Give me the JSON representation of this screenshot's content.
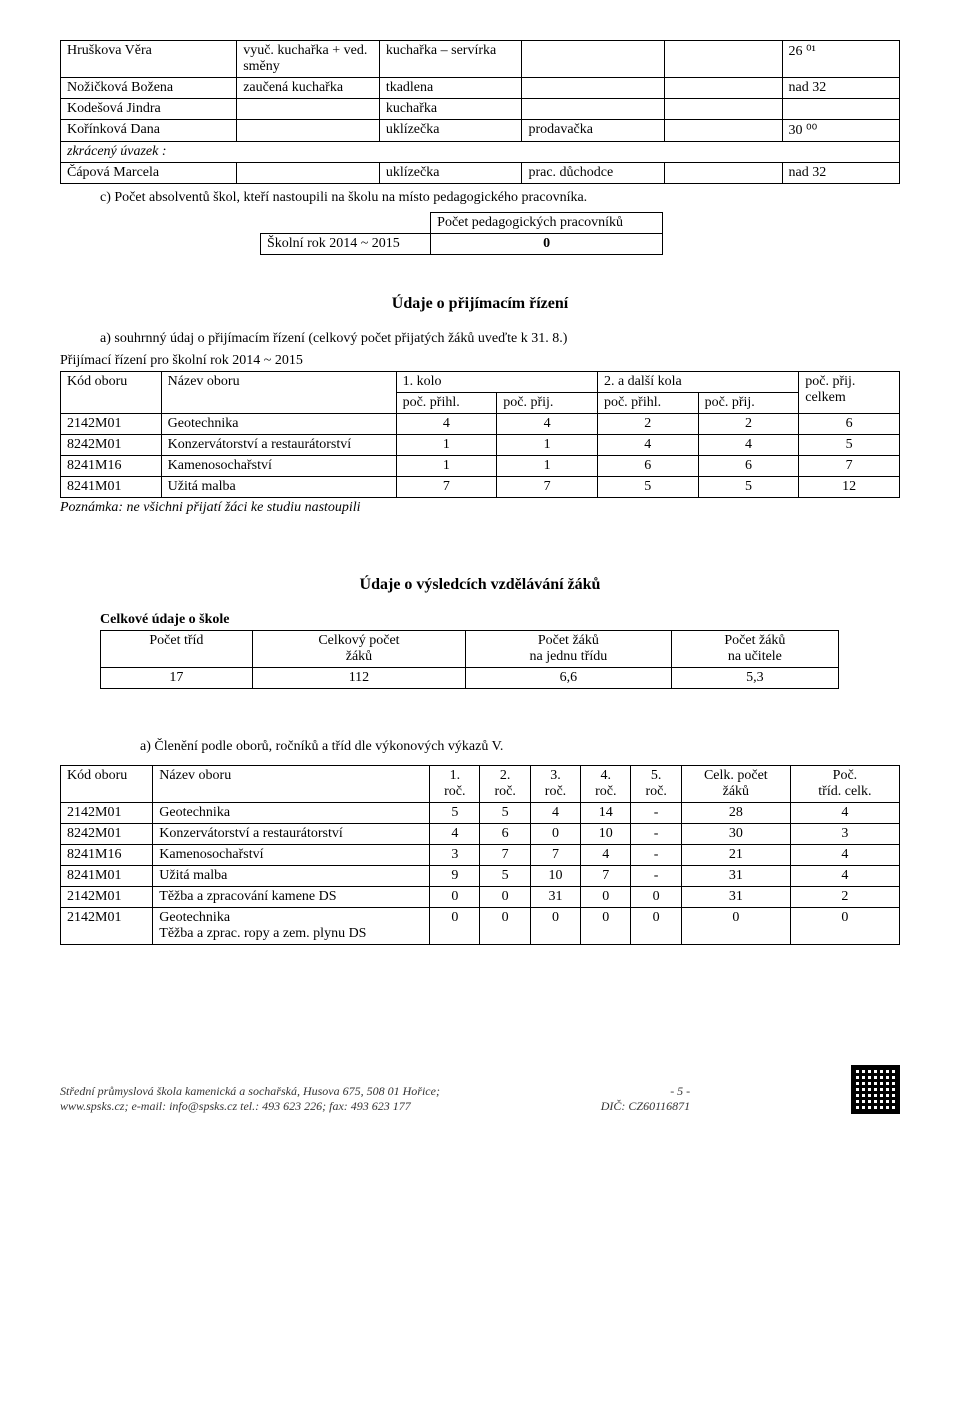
{
  "staff_table": {
    "rows": [
      {
        "name": "Hruškova Věra",
        "col2": "vyuč. kuchařka + ved. směny",
        "col3": "kuchařka – servírka",
        "col4": "",
        "col5": "",
        "col6": "26 ⁰¹"
      },
      {
        "name": "Nožičková Božena",
        "col2": "zaučená kuchařka",
        "col3": "tkadlena",
        "col4": "",
        "col5": "",
        "col6": "nad 32"
      },
      {
        "name": "Kodešová Jindra",
        "col2": "",
        "col3": "kuchařka",
        "col4": "",
        "col5": "",
        "col6": ""
      },
      {
        "name": "Kořínková Dana",
        "col2": "",
        "col3": "uklízečka",
        "col4": "prodavačka",
        "col5": "",
        "col6": "30 ⁰⁰"
      },
      {
        "name": "zkrácený úvazek :",
        "italic": true,
        "colspan": 6
      },
      {
        "name": "Čápová Marcela",
        "col2": "",
        "col3": "uklízečka",
        "col4": "prac. důchodce",
        "col5": "",
        "col6": "nad 32"
      }
    ]
  },
  "item_c": "c)   Počet absolventů škol, kteří nastoupili na školu na místo pedagogického pracovníka.",
  "ped_table": {
    "header": "Počet pedagogických pracovníků",
    "row_label": "Školní rok 2014 ~ 2015",
    "row_value": "0"
  },
  "section1_title": "Údaje o přijímacím řízení",
  "section1_item_a": "a)  souhrnný údaj o přijímacím řízení (celkový počet přijatých žáků uveďte k 31. 8.)",
  "admission_title": "Přijímací řízení pro školní rok 2014 ~ 2015",
  "admission_table": {
    "headers": [
      "Kód oboru",
      "Název oboru",
      "1. kolo",
      "",
      "2. a další kola",
      "",
      "poč. přij. celkem"
    ],
    "subheaders": [
      "",
      "",
      "poč. přihl.",
      "poč. přij.",
      "poč. přihl.",
      "poč. přij.",
      ""
    ],
    "rows": [
      [
        "2142M01",
        "Geotechnika",
        "4",
        "4",
        "2",
        "2",
        "6"
      ],
      [
        "8242M01",
        "Konzervátorství a restaurátorství",
        "1",
        "1",
        "4",
        "4",
        "5"
      ],
      [
        "8241M16",
        "Kamenosochařství",
        "1",
        "1",
        "6",
        "6",
        "7"
      ],
      [
        "8241M01",
        "Užitá malba",
        "7",
        "7",
        "5",
        "5",
        "12"
      ]
    ]
  },
  "admission_note": "Poznámka: ne všichni přijatí žáci ke studiu nastoupili",
  "section2_title": "Údaje o výsledcích vzdělávání žáků",
  "summary_label": "Celkové údaje o škole",
  "summary_table": {
    "headers": [
      "Počet tříd",
      "Celkový počet žáků",
      "Počet žáků na jednu třídu",
      "Počet žáků na učitele"
    ],
    "row": [
      "17",
      "112",
      "6,6",
      "5,3"
    ]
  },
  "section2_item_a": "a)        Členění podle oborů, ročníků a tříd dle výkonových výkazů V.",
  "breakdown_table": {
    "headers": [
      "Kód oboru",
      "Název oboru",
      "1. roč.",
      "2. roč.",
      "3. roč.",
      "4. roč.",
      "5. roč.",
      "Celk. počet žáků",
      "Poč. tříd. celk."
    ],
    "rows": [
      [
        "2142M01",
        "Geotechnika",
        "5",
        "5",
        "4",
        "14",
        "-",
        "28",
        "4"
      ],
      [
        "8242M01",
        "Konzervátorství a restaurátorství",
        "4",
        "6",
        "0",
        "10",
        "-",
        "30",
        "3"
      ],
      [
        "8241M16",
        "Kamenosochařství",
        "3",
        "7",
        "7",
        "4",
        "-",
        "21",
        "4"
      ],
      [
        "8241M01",
        "Užitá malba",
        "9",
        "5",
        "10",
        "7",
        "-",
        "31",
        "4"
      ],
      [
        "2142M01",
        "Těžba a zpracování kamene DS",
        "0",
        "0",
        "31",
        "0",
        "0",
        "31",
        "2"
      ],
      [
        "2142M01",
        "Geotechnika\nTěžba a zprac. ropy a zem. plynu DS",
        "0",
        "0",
        "0",
        "0",
        "0",
        "0",
        "0"
      ]
    ]
  },
  "footer": {
    "line1": "Střední průmyslová škola kamenická a sochařská, Husova 675, 508 01 Hořice;",
    "line2": "www.spsks.cz;      e-mail: info@spsks.cz         tel.: 493 623 226;       fax: 493 623 177",
    "page": "- 5 -",
    "dic": "DIČ: CZ60116871"
  }
}
